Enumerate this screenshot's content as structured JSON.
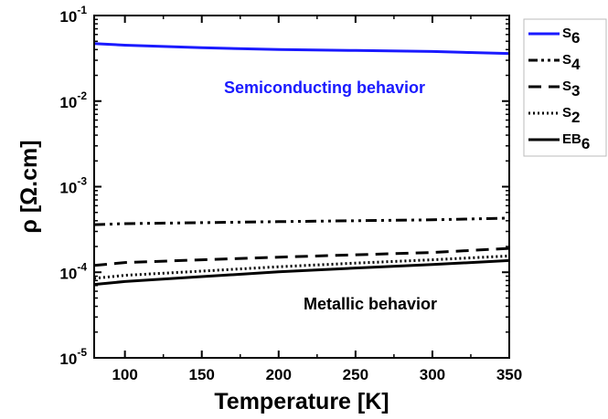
{
  "chart_data": {
    "type": "line",
    "xlabel": "Temperature [K]",
    "ylabel": "ρ [Ω.cm]",
    "xlim": [
      80,
      350
    ],
    "ylim": [
      1e-05,
      0.1
    ],
    "yscale": "log",
    "grid": false,
    "legend_position": "outside-right",
    "x_ticks": [
      "100",
      "150",
      "200",
      "250",
      "300",
      "350"
    ],
    "y_ticks": [
      {
        "base": "10",
        "exp": "-5"
      },
      {
        "base": "10",
        "exp": "-4"
      },
      {
        "base": "10",
        "exp": "-3"
      },
      {
        "base": "10",
        "exp": "-2"
      },
      {
        "base": "10",
        "exp": "-1"
      }
    ],
    "annotations": [
      {
        "text": "Semiconducting behavior",
        "color": "#1a1aff"
      },
      {
        "text": "Metallic behavior",
        "color": "#000000"
      }
    ],
    "series": [
      {
        "name": "S6",
        "name_base": "S",
        "name_sub": "6",
        "color": "#1a1aff",
        "style": "solid",
        "x": [
          80,
          100,
          150,
          200,
          250,
          300,
          350
        ],
        "y": [
          0.047,
          0.045,
          0.042,
          0.04,
          0.039,
          0.038,
          0.036
        ]
      },
      {
        "name": "S4",
        "name_base": "S",
        "name_sub": "4",
        "color": "#000000",
        "style": "dashdotdot",
        "x": [
          80,
          100,
          150,
          200,
          250,
          300,
          350
        ],
        "y": [
          0.00036,
          0.00037,
          0.00038,
          0.00039,
          0.0004,
          0.00041,
          0.00043
        ]
      },
      {
        "name": "S3",
        "name_base": "S",
        "name_sub": "3",
        "color": "#000000",
        "style": "dash",
        "x": [
          80,
          100,
          150,
          200,
          250,
          300,
          350
        ],
        "y": [
          0.00012,
          0.00013,
          0.00014,
          0.00015,
          0.00016,
          0.00017,
          0.00019
        ]
      },
      {
        "name": "S2",
        "name_base": "S",
        "name_sub": "2",
        "color": "#000000",
        "style": "dot",
        "x": [
          80,
          100,
          150,
          200,
          250,
          300,
          350
        ],
        "y": [
          8.5e-05,
          9.2e-05,
          0.000103,
          0.000116,
          0.000128,
          0.00014,
          0.000155
        ]
      },
      {
        "name": "EB6",
        "name_base": "EB",
        "name_sub": "6",
        "color": "#000000",
        "style": "solid",
        "x": [
          80,
          100,
          150,
          200,
          250,
          300,
          350
        ],
        "y": [
          7.2e-05,
          7.8e-05,
          8.9e-05,
          0.000101,
          0.000112,
          0.000123,
          0.000137
        ]
      }
    ]
  }
}
